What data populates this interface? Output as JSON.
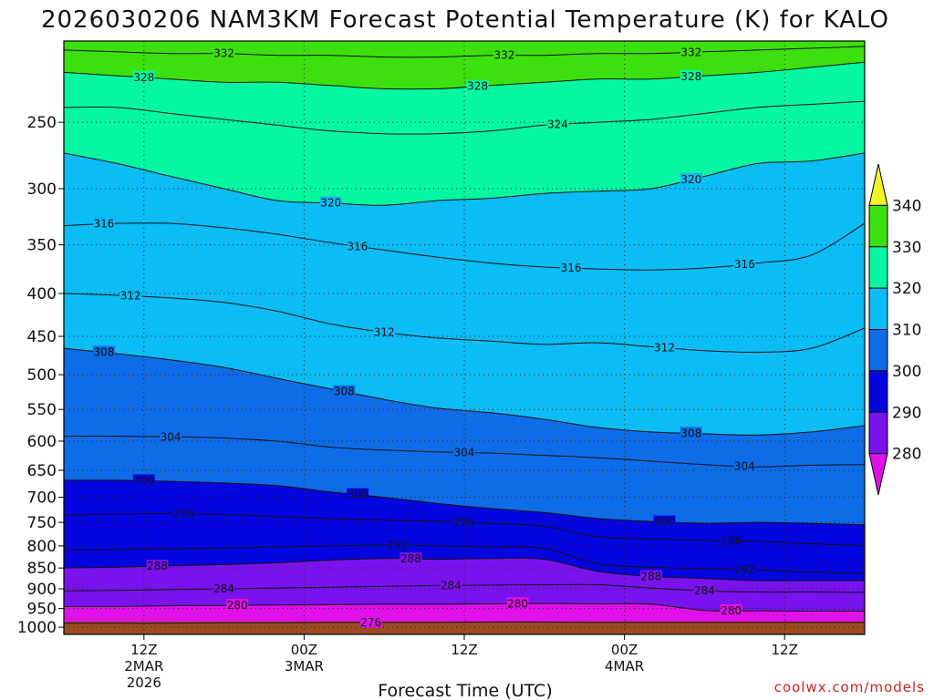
{
  "title": "2026030206 NAM3KM Forecast Potential Temperature (K) for KALO",
  "credit": "coolwx.com/models",
  "chart_data": {
    "type": "heatmap",
    "title": "2026030206 NAM3KM Forecast Potential Temperature (K) for KALO",
    "xlabel": "Forecast Time (UTC)",
    "ylabel": "",
    "x_ticks": [
      {
        "hour": 6,
        "lines": [
          "12Z",
          "2MAR",
          "2026"
        ]
      },
      {
        "hour": 18,
        "lines": [
          "00Z",
          "3MAR"
        ]
      },
      {
        "hour": 30,
        "lines": [
          "12Z"
        ]
      },
      {
        "hour": 42,
        "lines": [
          "00Z",
          "4MAR"
        ]
      },
      {
        "hour": 54,
        "lines": [
          "12Z"
        ]
      }
    ],
    "x_range": [
      0,
      60
    ],
    "y_ticks": [
      250,
      300,
      350,
      400,
      450,
      500,
      550,
      600,
      650,
      700,
      750,
      800,
      850,
      900,
      950,
      1000
    ],
    "y_tick_labels": [
      "250",
      "300",
      "350",
      "400",
      "450",
      "500",
      "550",
      "600",
      "650",
      "700",
      "750",
      "800",
      "850",
      "900",
      "950",
      "1000"
    ],
    "y_range_hpa": [
      200,
      1020
    ],
    "y_scale": "log-pressure",
    "ground_pressure_hpa": 985,
    "colorbar": {
      "levels": [
        280,
        290,
        300,
        310,
        320,
        330,
        340
      ],
      "labels": [
        "280",
        "290",
        "300",
        "310",
        "320",
        "330",
        "340"
      ],
      "colors": [
        "#e010e8",
        "#7a12ee",
        "#0505e0",
        "#0e6ce6",
        "#0bbcf5",
        "#05f7a2",
        "#3de00f",
        "#f3f328"
      ]
    },
    "grid": "dotted",
    "contour_interval": 4,
    "series": [
      {
        "level": 276,
        "values": [
          989,
          989,
          989,
          988,
          988,
          987,
          987,
          987,
          986,
          986,
          987,
          987,
          987,
          987,
          987,
          987
        ]
      },
      {
        "level": 280,
        "values": [
          945,
          945,
          943,
          942,
          941,
          940,
          939,
          939,
          938,
          937,
          938,
          939,
          955,
          956,
          957,
          957
        ]
      },
      {
        "level": 284,
        "values": [
          905,
          904,
          902,
          900,
          898,
          896,
          894,
          892,
          891,
          890,
          890,
          898,
          905,
          908,
          908,
          909
        ]
      },
      {
        "level": 288,
        "values": [
          850,
          848,
          845,
          842,
          838,
          832,
          828,
          830,
          828,
          830,
          858,
          870,
          875,
          880,
          880,
          880
        ]
      },
      {
        "level": 292,
        "values": [
          810,
          808,
          806,
          805,
          802,
          800,
          798,
          800,
          802,
          806,
          840,
          848,
          852,
          855,
          860,
          862
        ]
      },
      {
        "level": 296,
        "values": [
          735,
          733,
          732,
          734,
          738,
          742,
          745,
          748,
          752,
          758,
          780,
          785,
          788,
          790,
          795,
          800
        ]
      },
      {
        "level": 300,
        "values": [
          668,
          668,
          670,
          673,
          678,
          690,
          700,
          712,
          722,
          730,
          742,
          748,
          752,
          750,
          752,
          755
        ]
      },
      {
        "level": 304,
        "values": [
          592,
          592,
          593,
          595,
          600,
          610,
          615,
          618,
          620,
          624,
          628,
          634,
          640,
          644,
          641,
          640
        ]
      },
      {
        "level": 308,
        "values": [
          465,
          472,
          480,
          490,
          505,
          520,
          535,
          548,
          555,
          565,
          578,
          585,
          588,
          590,
          585,
          575
        ]
      },
      {
        "level": 312,
        "values": [
          400,
          402,
          405,
          410,
          420,
          435,
          445,
          452,
          456,
          460,
          458,
          463,
          468,
          470,
          465,
          440
        ]
      },
      {
        "level": 316,
        "values": [
          332,
          330,
          330,
          334,
          340,
          348,
          355,
          362,
          368,
          372,
          374,
          375,
          373,
          368,
          360,
          330
        ]
      },
      {
        "level": 320,
        "values": [
          272,
          280,
          290,
          300,
          310,
          312,
          314,
          310,
          308,
          304,
          302,
          300,
          290,
          280,
          278,
          272
        ]
      },
      {
        "level": 324,
        "values": [
          240,
          240,
          244,
          248,
          252,
          256,
          258,
          258,
          256,
          252,
          250,
          248,
          244,
          240,
          238,
          236
        ]
      },
      {
        "level": 328,
        "values": [
          218,
          220,
          222,
          224,
          224,
          226,
          228,
          228,
          226,
          224,
          222,
          222,
          220,
          218,
          215,
          212
        ]
      },
      {
        "level": 332,
        "values": [
          205,
          206,
          207,
          207,
          208,
          208,
          209,
          209,
          208,
          208,
          207,
          207,
          206,
          205,
          204,
          203
        ]
      },
      {
        "level": 336,
        "values": [
          200,
          200,
          200,
          200,
          200,
          200,
          200,
          200,
          200,
          200,
          200,
          200,
          200,
          200,
          200,
          200
        ]
      }
    ],
    "series_hours": [
      0,
      4,
      8,
      12,
      16,
      20,
      24,
      28,
      32,
      36,
      40,
      44,
      48,
      52,
      56,
      60
    ],
    "contour_labels": [
      {
        "text": "332",
        "hour": 12,
        "level": 332
      },
      {
        "text": "328",
        "hour": 31,
        "level": 328
      },
      {
        "text": "332",
        "hour": 33,
        "level": 332
      },
      {
        "text": "332",
        "hour": 47,
        "level": 332
      },
      {
        "text": "328",
        "hour": 6,
        "level": 328
      },
      {
        "text": "324",
        "hour": 37,
        "level": 324
      },
      {
        "text": "328",
        "hour": 47,
        "level": 328
      },
      {
        "text": "320",
        "hour": 47,
        "level": 320
      },
      {
        "text": "320",
        "hour": 20,
        "level": 320
      },
      {
        "text": "316",
        "hour": 3,
        "level": 316
      },
      {
        "text": "316",
        "hour": 22,
        "level": 316
      },
      {
        "text": "316",
        "hour": 38,
        "level": 316
      },
      {
        "text": "316",
        "hour": 51,
        "level": 316
      },
      {
        "text": "312",
        "hour": 5,
        "level": 312
      },
      {
        "text": "308",
        "hour": 3,
        "level": 308
      },
      {
        "text": "312",
        "hour": 24,
        "level": 312
      },
      {
        "text": "312",
        "hour": 45,
        "level": 312
      },
      {
        "text": "308",
        "hour": 21,
        "level": 308
      },
      {
        "text": "308",
        "hour": 47,
        "level": 308
      },
      {
        "text": "304",
        "hour": 8,
        "level": 304
      },
      {
        "text": "304",
        "hour": 30,
        "level": 304
      },
      {
        "text": "304",
        "hour": 51,
        "level": 304
      },
      {
        "text": "300",
        "hour": 6,
        "level": 300
      },
      {
        "text": "296",
        "hour": 9,
        "level": 296
      },
      {
        "text": "300",
        "hour": 22,
        "level": 300
      },
      {
        "text": "300",
        "hour": 45,
        "level": 300
      },
      {
        "text": "292",
        "hour": 25,
        "level": 292
      },
      {
        "text": "296",
        "hour": 30,
        "level": 296
      },
      {
        "text": "296",
        "hour": 50,
        "level": 296
      },
      {
        "text": "288",
        "hour": 7,
        "level": 288
      },
      {
        "text": "292",
        "hour": 51,
        "level": 292
      },
      {
        "text": "288",
        "hour": 26,
        "level": 288
      },
      {
        "text": "288",
        "hour": 44,
        "level": 288
      },
      {
        "text": "284",
        "hour": 12,
        "level": 284
      },
      {
        "text": "284",
        "hour": 29,
        "level": 284
      },
      {
        "text": "284",
        "hour": 48,
        "level": 284
      },
      {
        "text": "280",
        "hour": 13,
        "level": 280
      },
      {
        "text": "280",
        "hour": 34,
        "level": 280
      },
      {
        "text": "280",
        "hour": 50,
        "level": 280
      },
      {
        "text": "276",
        "hour": 23,
        "level": 276
      }
    ]
  }
}
